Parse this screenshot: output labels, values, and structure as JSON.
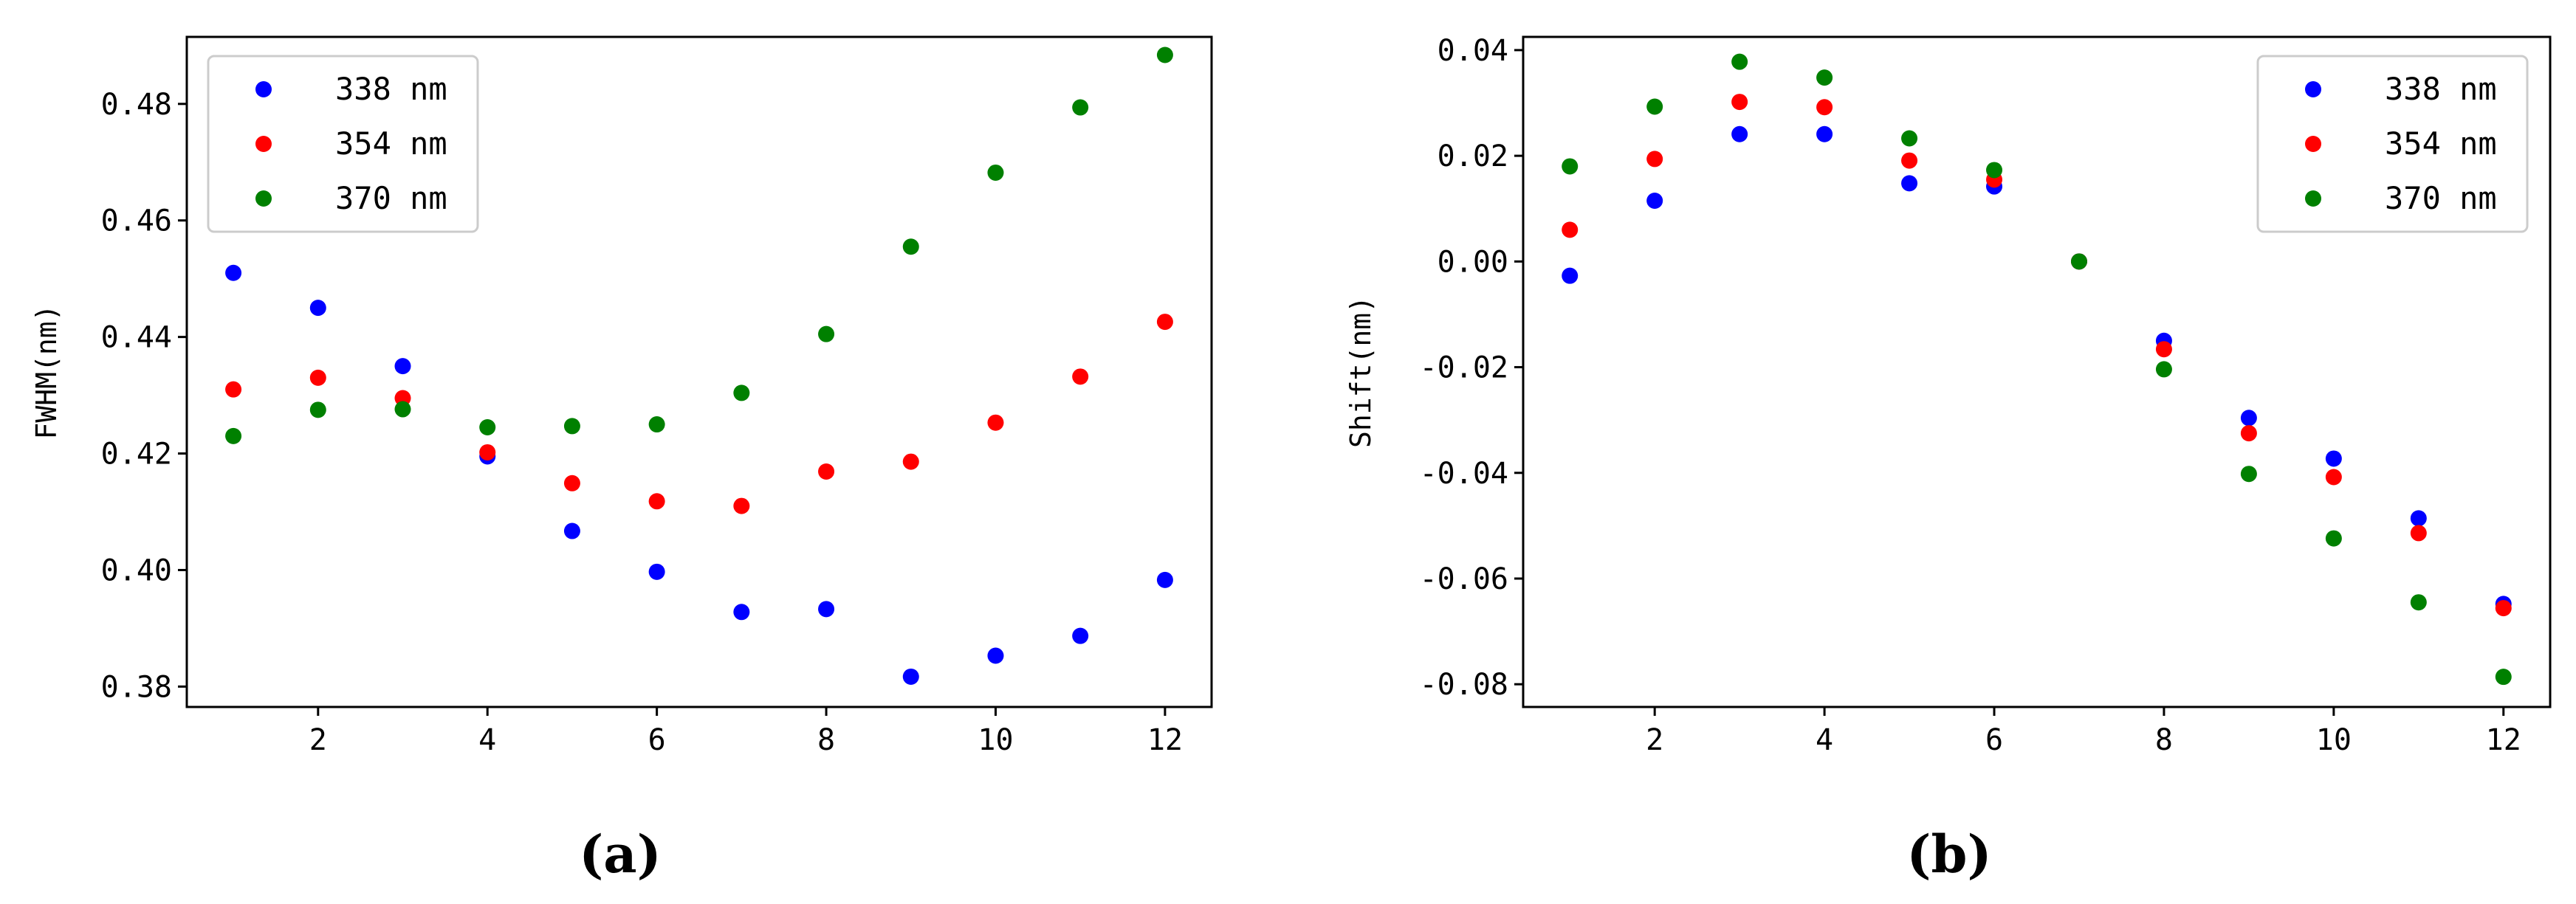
{
  "chart_data": [
    {
      "type": "scatter",
      "panel_label": "(a)",
      "title": "",
      "xlabel": "",
      "ylabel": "FWHM(nm)",
      "xlim": [
        0.45,
        12.55
      ],
      "ylim": [
        0.3765,
        0.4915
      ],
      "xticks": [
        2,
        4,
        6,
        8,
        10,
        12
      ],
      "xtick_labels": [
        "2",
        "4",
        "6",
        "8",
        "10",
        "12"
      ],
      "yticks": [
        0.38,
        0.4,
        0.42,
        0.44,
        0.46,
        0.48
      ],
      "ytick_labels": [
        "0.38",
        "0.40",
        "0.42",
        "0.44",
        "0.46",
        "0.48"
      ],
      "legend_position": "top-left",
      "grid": false,
      "x": [
        1,
        2,
        3,
        4,
        5,
        6,
        7,
        8,
        9,
        10,
        11,
        12
      ],
      "series": [
        {
          "name": "338 nm",
          "color": "#0000ff",
          "values": [
            0.451,
            0.445,
            0.435,
            0.4195,
            0.4067,
            0.3997,
            0.3928,
            0.3933,
            0.3817,
            0.3853,
            0.3887,
            0.3983
          ]
        },
        {
          "name": "354 nm",
          "color": "#ff0000",
          "values": [
            0.431,
            0.433,
            0.4295,
            0.4202,
            0.4149,
            0.4118,
            0.411,
            0.4169,
            0.4186,
            0.4253,
            0.4332,
            0.4426
          ]
        },
        {
          "name": "370 nm",
          "color": "#008000",
          "values": [
            0.423,
            0.4275,
            0.4276,
            0.4245,
            0.4247,
            0.425,
            0.4304,
            0.4405,
            0.4555,
            0.4682,
            0.4794,
            0.4884
          ]
        }
      ]
    },
    {
      "type": "scatter",
      "panel_label": "(b)",
      "title": "",
      "xlabel": "",
      "ylabel": "Shift(nm)",
      "xlim": [
        0.45,
        12.55
      ],
      "ylim": [
        -0.0843,
        0.0425
      ],
      "xticks": [
        2,
        4,
        6,
        8,
        10,
        12
      ],
      "xtick_labels": [
        "2",
        "4",
        "6",
        "8",
        "10",
        "12"
      ],
      "yticks": [
        -0.08,
        -0.06,
        -0.04,
        -0.02,
        0.0,
        0.02,
        0.04
      ],
      "ytick_labels": [
        "-0.08",
        "-0.06",
        "-0.04",
        "-0.02",
        "0.00",
        "0.02",
        "0.04"
      ],
      "legend_position": "top-right",
      "grid": false,
      "x": [
        1,
        2,
        3,
        4,
        5,
        6,
        7,
        8,
        9,
        10,
        11,
        12
      ],
      "series": [
        {
          "name": "338 nm",
          "color": "#0000ff",
          "values": [
            -0.0027,
            0.0115,
            0.0241,
            0.0241,
            0.0148,
            0.0142,
            0.0,
            -0.015,
            -0.0296,
            -0.0373,
            -0.0486,
            -0.0648
          ]
        },
        {
          "name": "354 nm",
          "color": "#ff0000",
          "values": [
            0.006,
            0.0194,
            0.0302,
            0.0292,
            0.0191,
            0.0155,
            0.0,
            -0.0166,
            -0.0325,
            -0.0408,
            -0.0514,
            -0.0656
          ]
        },
        {
          "name": "370 nm",
          "color": "#008000",
          "values": [
            0.018,
            0.0293,
            0.0378,
            0.0348,
            0.0233,
            0.0173,
            0.0,
            -0.0204,
            -0.0402,
            -0.0524,
            -0.0645,
            -0.0786
          ]
        }
      ]
    }
  ]
}
